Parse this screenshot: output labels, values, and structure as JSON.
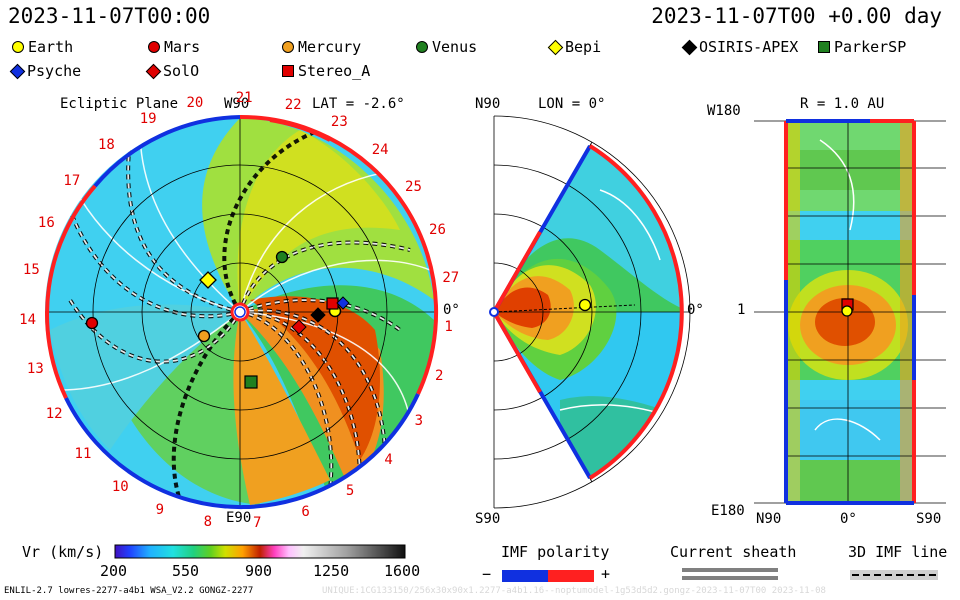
{
  "header": {
    "left_time": "2023-11-07T00:00",
    "right_time": "2023-11-07T00 +0.00 day"
  },
  "legend": [
    {
      "label": "Earth",
      "shape": "circle",
      "color": "#ffff00"
    },
    {
      "label": "Mars",
      "shape": "circle",
      "color": "#e00000"
    },
    {
      "label": "Mercury",
      "shape": "circle",
      "color": "#f0a020"
    },
    {
      "label": "Venus",
      "shape": "circle",
      "color": "#208020"
    },
    {
      "label": "Bepi",
      "shape": "diamond",
      "color": "#ffff00"
    },
    {
      "label": "OSIRIS-APEX",
      "shape": "diamond",
      "color": "#000000"
    },
    {
      "label": "ParkerSP",
      "shape": "square",
      "color": "#208020"
    },
    {
      "label": "Psyche",
      "shape": "diamond",
      "color": "#1030e0"
    },
    {
      "label": "SolO",
      "shape": "diamond",
      "color": "#e00000"
    },
    {
      "label": "Stereo_A",
      "shape": "square",
      "color": "#e00000"
    }
  ],
  "panel_ecliptic": {
    "title": "Ecliptic Plane",
    "top_label": "W90",
    "lat_label": "LAT = -2.6°",
    "bottom_label": "E90",
    "right_label": "0°",
    "carrington_ticks": [
      "19",
      "20",
      "21",
      "22",
      "23",
      "24",
      "25",
      "26",
      "27",
      "1",
      "2",
      "3",
      "4",
      "5",
      "6",
      "7",
      "8",
      "9",
      "10",
      "11",
      "12",
      "13",
      "14",
      "15",
      "16",
      "17",
      "18"
    ]
  },
  "panel_meridional": {
    "top_left": "N90",
    "lon_label": "LON = 0°",
    "right_label": "0°",
    "bottom_left": "S90"
  },
  "panel_r": {
    "title": "R = 1.0 AU",
    "top_left": "W180",
    "mid_left": "1",
    "bottom_left": "E180",
    "bottom_x": [
      "N90",
      "0°",
      "S90"
    ]
  },
  "colorbar": {
    "label": "Vr (km/s)",
    "ticks": [
      "200",
      "550",
      "900",
      "1250",
      "1600"
    ],
    "colors": [
      "#2020d0",
      "#20a0ff",
      "#20e0e0",
      "#20d080",
      "#60d020",
      "#d0e000",
      "#ffa000",
      "#e04000",
      "#c00000",
      "#ff40c0",
      "#ffc0ff",
      "#e0e0e0",
      "#a0a0a0",
      "#606060",
      "#202020"
    ]
  },
  "imf": {
    "title": "IMF polarity",
    "minus": "−",
    "plus": "+"
  },
  "sheath": {
    "title": "Current sheath"
  },
  "imf_line": {
    "title": "3D IMF line"
  },
  "footer": {
    "left": "ENLIL-2.7 lowres-2277-a4b1 WSA_V2.2 GONGZ-2277",
    "right": "UNIQUE:1CG133150/256x30x90x1.2277-a4b1.16--noptumodel-1g53d5d2.gongz-2023-11-07T00   2023-11-08"
  }
}
